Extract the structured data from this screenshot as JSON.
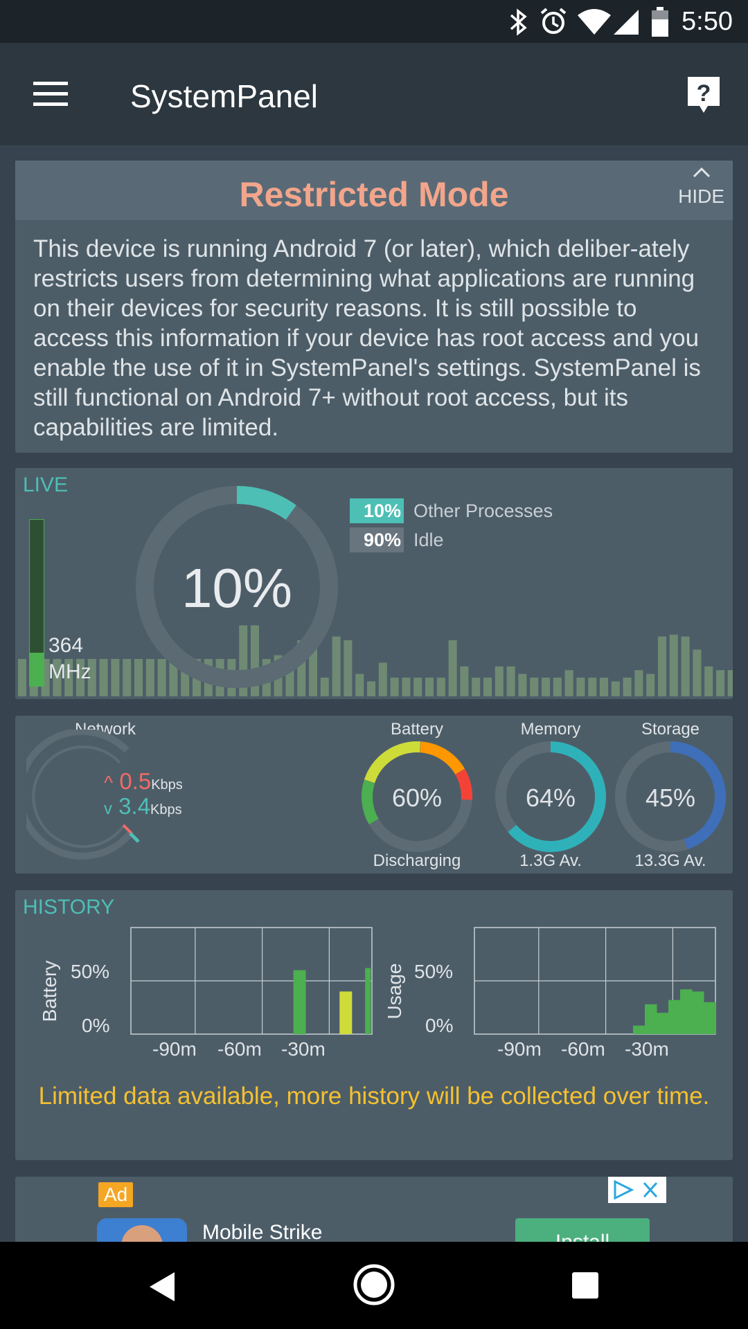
{
  "status_bar": {
    "time": "5:50"
  },
  "app_bar": {
    "title": "SystemPanel"
  },
  "restricted": {
    "title": "Restricted Mode",
    "hide_label": "HIDE",
    "body": "This device is running Android 7 (or later), which deliber-ately restricts users from determining what applications are running on their devices for security reasons. It is still possible to access this information if your device has root access and you enable the use of it in SystemPanel's settings. SystemPanel is still functional on Android 7+ without root access, but its capabilities are limited."
  },
  "live": {
    "label": "LIVE",
    "cpu_percent": "10%",
    "cpu_value": 10,
    "freq_value": "364",
    "freq_unit": "MHz",
    "freq_level": 0.2,
    "legend": [
      {
        "pct": "10%",
        "name": "Other Processes",
        "color": "#4dbfb5"
      },
      {
        "pct": "90%",
        "name": "Idle",
        "color": "#69757e"
      }
    ],
    "bars": [
      20,
      20,
      20,
      20,
      20,
      20,
      20,
      20,
      20,
      20,
      20,
      20,
      20,
      20,
      20,
      20,
      20,
      20,
      20,
      38,
      38,
      20,
      22,
      14,
      30,
      28,
      10,
      32,
      30,
      12,
      8,
      18,
      10,
      10,
      10,
      10,
      10,
      30,
      16,
      10,
      10,
      16,
      16,
      12,
      10,
      10,
      10,
      14,
      10,
      10,
      10,
      8,
      10,
      14,
      12,
      32,
      33,
      32,
      25,
      16,
      14,
      14
    ]
  },
  "stats": {
    "network": {
      "label": "Network",
      "up": "0.5",
      "down": "3.4",
      "unit": "Kbps"
    },
    "battery": {
      "label": "Battery",
      "value": "60%",
      "level": 60,
      "status": "Discharging"
    },
    "memory": {
      "label": "Memory",
      "value": "64%",
      "level": 64,
      "available": "1.3G Av."
    },
    "storage": {
      "label": "Storage",
      "value": "45%",
      "level": 45,
      "available": "13.3G Av."
    },
    "colors": {
      "battery_green": "#4caf50",
      "battery_lime": "#cddc39",
      "battery_orange": "#ff9800",
      "battery_red": "#f44336",
      "memory": "#2fb1b9",
      "storage": "#3e6fb8",
      "ring_bg": "#5d6b75"
    }
  },
  "history": {
    "label": "HISTORY",
    "notice": "Limited data available, more history will be collected over time.",
    "battery_chart": {
      "ylabel": "Battery",
      "yticks": [
        "50%",
        "0%"
      ],
      "xticks": [
        "-90m",
        "-60m",
        "-30m"
      ],
      "bars": [
        {
          "x": -36,
          "y": 60,
          "color": "#4caf50"
        },
        {
          "x": -13,
          "y": 40,
          "color": "#cddc39"
        },
        {
          "x": -2,
          "y": 62,
          "color": "#4caf50"
        }
      ]
    },
    "usage_chart": {
      "ylabel": "Usage",
      "yticks": [
        "50%",
        "0%"
      ],
      "xticks": [
        "-90m",
        "-60m",
        "-30m"
      ],
      "bars": [
        8,
        8,
        28,
        28,
        20,
        20,
        32,
        32,
        42,
        42,
        40,
        40,
        30,
        30
      ]
    }
  },
  "ad": {
    "badge": "Ad",
    "title": "Mobile Strike",
    "install": "Install"
  }
}
